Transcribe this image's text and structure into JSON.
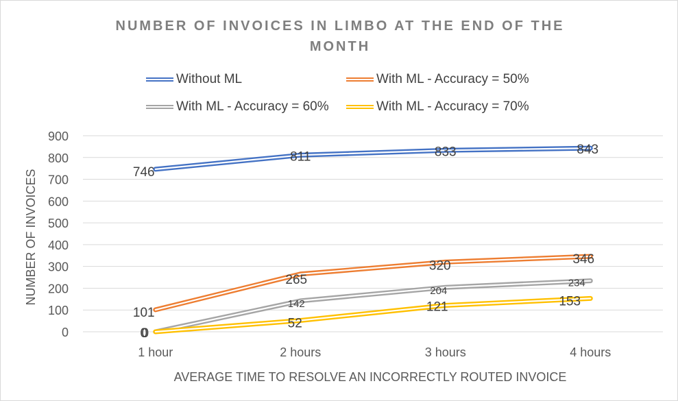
{
  "chart_data": {
    "type": "line",
    "title": "NUMBER OF INVOICES IN LIMBO AT THE END OF THE MONTH",
    "xlabel": "AVERAGE TIME TO RESOLVE AN INCORRECTLY ROUTED INVOICE",
    "ylabel": "NUMBER OF INVOICES",
    "categories": [
      "1 hour",
      "2 hours",
      "3 hours",
      "4 hours"
    ],
    "ylim": [
      0,
      900
    ],
    "yticks": [
      "0",
      "100",
      "200",
      "300",
      "400",
      "500",
      "600",
      "700",
      "800",
      "900"
    ],
    "grid": "horizontal",
    "legend_position": "top",
    "series": [
      {
        "name": "Without ML",
        "color": "#4472c4",
        "values": [
          746,
          811,
          833,
          843
        ],
        "labels": [
          "746",
          "811",
          "833",
          "843"
        ]
      },
      {
        "name": "With ML - Accuracy = 50%",
        "color": "#ed7d31",
        "values": [
          101,
          265,
          320,
          346
        ],
        "labels": [
          "101",
          "265",
          "320",
          "346"
        ]
      },
      {
        "name": "With ML - Accuracy = 60%",
        "color": "#a5a5a5",
        "values": [
          0,
          142,
          204,
          234
        ],
        "labels": [
          "0",
          "142",
          "204",
          "234"
        ]
      },
      {
        "name": "With ML - Accuracy = 70%",
        "color": "#ffc000",
        "values": [
          0,
          52,
          121,
          153
        ],
        "labels": [
          "0",
          "52",
          "121",
          "153"
        ]
      }
    ]
  }
}
